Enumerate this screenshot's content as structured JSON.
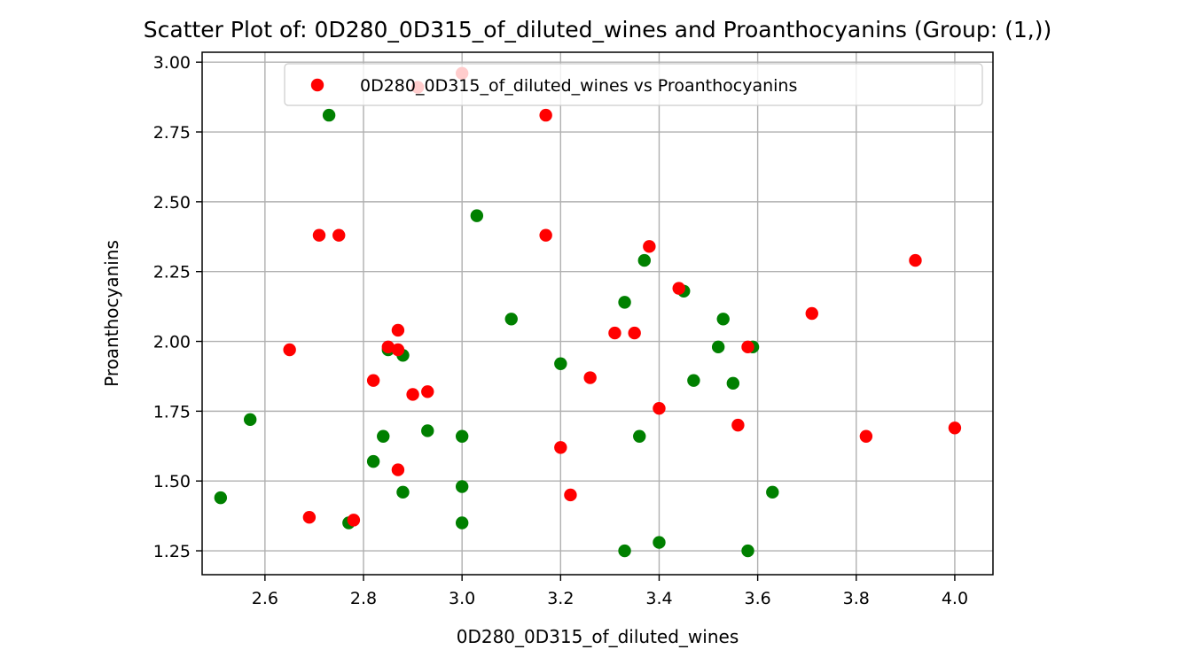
{
  "chart_data": {
    "type": "scatter",
    "title": "Scatter Plot of: 0D280_0D315_of_diluted_wines and Proanthocyanins (Group: (1,))",
    "xlabel": "0D280_0D315_of_diluted_wines",
    "ylabel": "Proanthocyanins",
    "xlim": [
      2.4725,
      4.0775
    ],
    "ylim": [
      1.1645,
      3.0355
    ],
    "xticks": [
      2.6,
      2.8,
      3.0,
      3.2,
      3.4,
      3.6,
      3.8,
      4.0
    ],
    "xtick_labels": [
      "2.6",
      "2.8",
      "3.0",
      "3.2",
      "3.4",
      "3.6",
      "3.8",
      "4.0"
    ],
    "yticks": [
      1.25,
      1.5,
      1.75,
      2.0,
      2.25,
      2.5,
      2.75,
      3.0
    ],
    "ytick_labels": [
      "1.25",
      "1.50",
      "1.75",
      "2.00",
      "2.25",
      "2.50",
      "2.75",
      "3.00"
    ],
    "grid": true,
    "legend": {
      "placement": "top-right",
      "entries": [
        {
          "label": "0D280_0D315_of_diluted_wines vs Proanthocyanins",
          "color": "#ff0000"
        }
      ]
    },
    "series": [
      {
        "color": "#008000",
        "points": [
          [
            2.51,
            1.44
          ],
          [
            2.57,
            1.72
          ],
          [
            2.73,
            2.81
          ],
          [
            2.77,
            1.35
          ],
          [
            2.82,
            1.57
          ],
          [
            2.84,
            1.66
          ],
          [
            2.85,
            1.97
          ],
          [
            2.88,
            1.95
          ],
          [
            2.88,
            1.46
          ],
          [
            2.93,
            1.68
          ],
          [
            3.0,
            1.66
          ],
          [
            3.0,
            1.48
          ],
          [
            3.0,
            1.35
          ],
          [
            3.03,
            2.45
          ],
          [
            3.1,
            2.08
          ],
          [
            3.2,
            1.92
          ],
          [
            3.33,
            2.14
          ],
          [
            3.33,
            1.25
          ],
          [
            3.36,
            1.66
          ],
          [
            3.37,
            2.29
          ],
          [
            3.4,
            1.28
          ],
          [
            3.45,
            2.18
          ],
          [
            3.47,
            1.86
          ],
          [
            3.52,
            1.98
          ],
          [
            3.53,
            2.08
          ],
          [
            3.55,
            1.85
          ],
          [
            3.58,
            1.25
          ],
          [
            3.59,
            1.98
          ],
          [
            3.63,
            1.46
          ]
        ]
      },
      {
        "color": "#ff0000",
        "points": [
          [
            2.65,
            1.97
          ],
          [
            2.69,
            1.37
          ],
          [
            2.71,
            2.38
          ],
          [
            2.75,
            2.38
          ],
          [
            2.78,
            1.36
          ],
          [
            2.82,
            1.86
          ],
          [
            2.85,
            1.98
          ],
          [
            2.87,
            2.04
          ],
          [
            2.87,
            1.97
          ],
          [
            2.87,
            1.54
          ],
          [
            2.9,
            1.81
          ],
          [
            2.91,
            2.91
          ],
          [
            2.93,
            1.82
          ],
          [
            3.0,
            2.96
          ],
          [
            3.17,
            2.81
          ],
          [
            3.17,
            2.38
          ],
          [
            3.2,
            1.62
          ],
          [
            3.22,
            1.45
          ],
          [
            3.26,
            1.87
          ],
          [
            3.31,
            2.03
          ],
          [
            3.35,
            2.03
          ],
          [
            3.38,
            2.34
          ],
          [
            3.4,
            1.76
          ],
          [
            3.44,
            2.19
          ],
          [
            3.56,
            1.7
          ],
          [
            3.58,
            1.98
          ],
          [
            3.71,
            2.1
          ],
          [
            3.82,
            1.66
          ],
          [
            3.92,
            2.29
          ],
          [
            4.0,
            1.69
          ]
        ]
      }
    ]
  }
}
